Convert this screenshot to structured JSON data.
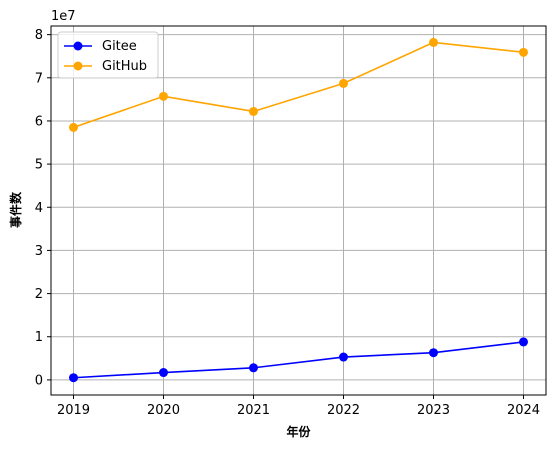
{
  "chart_data": {
    "type": "line",
    "title": "",
    "xlabel": "年份",
    "ylabel": "事件数",
    "y_offset_label": "1e7",
    "categories": [
      "2019",
      "2020",
      "2021",
      "2022",
      "2023",
      "2024"
    ],
    "x": [
      2019,
      2020,
      2021,
      2022,
      2023,
      2024
    ],
    "xlim": [
      2018.75,
      2024.25
    ],
    "ylim": [
      -0.35,
      8.2
    ],
    "y_ticks": [
      0,
      1,
      2,
      3,
      4,
      5,
      6,
      7,
      8
    ],
    "y_tick_labels": [
      "0",
      "1",
      "2",
      "3",
      "4",
      "5",
      "6",
      "7",
      "8"
    ],
    "y_scale_factor": 10000000,
    "grid": true,
    "legend_position": "top-left",
    "series": [
      {
        "name": "Gitee",
        "color": "#0000ff",
        "marker": "circle",
        "values": [
          0.05,
          0.17,
          0.28,
          0.53,
          0.63,
          0.88
        ]
      },
      {
        "name": "GitHub",
        "color": "#ffa500",
        "marker": "circle",
        "values": [
          5.85,
          6.57,
          6.22,
          6.87,
          7.82,
          7.59
        ]
      }
    ]
  }
}
